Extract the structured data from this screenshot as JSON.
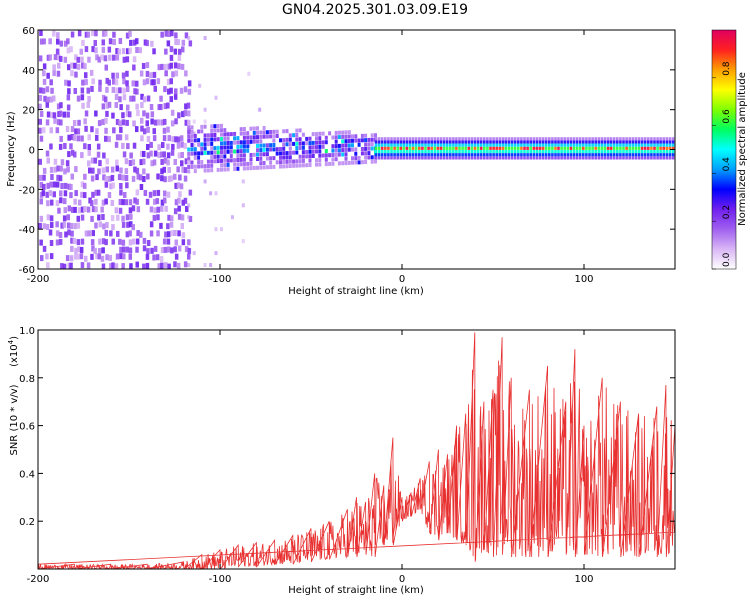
{
  "title": "GN04.2025.301.03.09.E19",
  "colors": {
    "snr_line": "#e83030",
    "axis": "#000000"
  },
  "chart_data": [
    {
      "type": "heatmap",
      "xlabel": "Height of straight line (km)",
      "ylabel": "Frequency (Hz)",
      "xlim": [
        -200,
        150
      ],
      "ylim": [
        -60,
        60
      ],
      "xticks": [
        -200,
        -100,
        0,
        100
      ],
      "yticks": [
        -60,
        -40,
        -20,
        0,
        20,
        40,
        60
      ],
      "colorbar": {
        "label": "Normalized spectral amplitude",
        "range": [
          0.0,
          1.0
        ],
        "ticks": [
          "0.0",
          "0.2",
          "0.4",
          "0.6",
          "0.8"
        ],
        "colormap": [
          "#ffffff",
          "#d9b6f5",
          "#a060f0",
          "#7020ee",
          "#0000ff",
          "#00a0ff",
          "#00ffff",
          "#00ff60",
          "#7fff00",
          "#ffff00",
          "#ffa000",
          "#ff2020",
          "#e00060"
        ]
      },
      "regions": [
        {
          "x_range": [
            -200,
            -118
          ],
          "y_range": [
            -60,
            60
          ],
          "level": "0.0-0.15",
          "pattern": "scattered noise"
        },
        {
          "x_range": [
            -118,
            -15
          ],
          "y_range": [
            -12,
            12
          ],
          "level": "0.15-0.5",
          "pattern": "blob around 0 Hz"
        },
        {
          "x_range": [
            -15,
            150
          ],
          "y_range": [
            -5,
            5
          ],
          "level": "0.3-1.0",
          "pattern": "narrow band at 0 Hz with red peaks"
        }
      ]
    },
    {
      "type": "line",
      "xlabel": "Height of straight line (km)",
      "ylabel": "SNR (10 * v/v)",
      "scale_label": "(x10",
      "scale_exp": "4",
      "scale_suffix": ")",
      "xlim": [
        -200,
        150
      ],
      "ylim": [
        0,
        1.0
      ],
      "xticks": [
        -200,
        -100,
        0,
        100
      ],
      "yticks": [
        "0.2",
        "0.4",
        "0.6",
        "0.8",
        "1.0"
      ],
      "series": [
        {
          "x": [
            -200,
            -180,
            -160,
            -140,
            -120,
            -110,
            -100,
            -90,
            -80,
            -70,
            -60,
            -50,
            -40,
            -30,
            -25,
            -20,
            -15,
            -10,
            -5,
            0,
            5,
            10,
            15,
            20,
            25,
            30,
            35,
            40,
            45,
            50,
            55,
            60,
            70,
            80,
            90,
            95,
            100,
            110,
            120,
            130,
            140,
            145,
            150
          ],
          "y": [
            0.02,
            0.02,
            0.02,
            0.02,
            0.03,
            0.06,
            0.08,
            0.1,
            0.11,
            0.12,
            0.14,
            0.17,
            0.2,
            0.25,
            0.3,
            0.28,
            0.4,
            0.35,
            0.55,
            0.3,
            0.32,
            0.38,
            0.45,
            0.5,
            0.48,
            0.6,
            0.65,
            0.99,
            0.7,
            0.75,
            0.97,
            0.8,
            0.75,
            0.85,
            0.7,
            0.92,
            0.6,
            0.8,
            0.7,
            0.65,
            0.68,
            0.77,
            0.6
          ],
          "lower_envelope": [
            0.0,
            0.0,
            0.0,
            0.0,
            0.0,
            0.0,
            0.0,
            0.01,
            0.01,
            0.02,
            0.02,
            0.03,
            0.04,
            0.05,
            0.05,
            0.06,
            0.05,
            0.1,
            0.1,
            0.2,
            0.22,
            0.25,
            0.15,
            0.12,
            0.15,
            0.12,
            0.1,
            0.03,
            0.08,
            0.05,
            0.06,
            0.05,
            0.05,
            0.05,
            0.06,
            0.05,
            0.06,
            0.05,
            0.05,
            0.05,
            0.05,
            0.05,
            0.1
          ]
        }
      ]
    }
  ]
}
